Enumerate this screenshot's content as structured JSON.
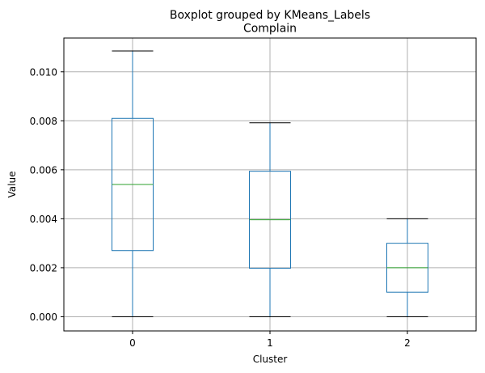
{
  "chart_data": {
    "type": "boxplot",
    "suptitle": "Boxplot grouped by KMeans_Labels",
    "title": "Complain",
    "xlabel": "Cluster",
    "ylabel": "Value",
    "categories": [
      "0",
      "1",
      "2"
    ],
    "boxes": [
      {
        "category": "0",
        "whisker_low": 0.0,
        "q1": 0.0027,
        "median": 0.0054,
        "q3": 0.0081,
        "whisker_high": 0.01085
      },
      {
        "category": "1",
        "whisker_low": 0.0,
        "q1": 0.00198,
        "median": 0.00396,
        "q3": 0.00594,
        "whisker_high": 0.00792
      },
      {
        "category": "2",
        "whisker_low": 0.0,
        "q1": 0.001,
        "median": 0.002,
        "q3": 0.003,
        "whisker_high": 0.004
      }
    ],
    "ylim": [
      -0.00058,
      0.01138
    ],
    "yticks": [
      0.0,
      0.002,
      0.004,
      0.006,
      0.008,
      0.01
    ],
    "ytick_labels": [
      "0.000",
      "0.002",
      "0.004",
      "0.006",
      "0.008",
      "0.010"
    ],
    "grid": true,
    "colors": {
      "box": "#1f77b4",
      "median": "#2ca02c",
      "cap": "#000000",
      "grid": "#b0b0b0"
    }
  }
}
